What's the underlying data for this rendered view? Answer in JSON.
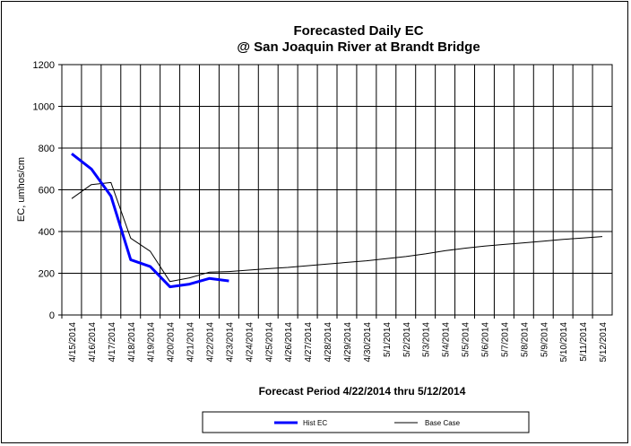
{
  "chart_data": {
    "type": "line",
    "title": "Forecasted Daily EC",
    "subtitle": "@ San Joaquin River at Brandt Bridge",
    "xlabel": "Forecast Period 4/22/2014 thru 5/12/2014",
    "ylabel": "EC, umhos/cm",
    "ylim": [
      0,
      1200
    ],
    "yticks": [
      0,
      200,
      400,
      600,
      800,
      1000,
      1200
    ],
    "grid": true,
    "legend_position": "bottom",
    "categories": [
      "4/15/2014",
      "4/16/2014",
      "4/17/2014",
      "4/18/2014",
      "4/19/2014",
      "4/20/2014",
      "4/21/2014",
      "4/22/2014",
      "4/23/2014",
      "4/24/2014",
      "4/25/2014",
      "4/26/2014",
      "4/27/2014",
      "4/28/2014",
      "4/29/2014",
      "4/30/2014",
      "5/1/2014",
      "5/2/2014",
      "5/3/2014",
      "5/4/2014",
      "5/5/2014",
      "5/6/2014",
      "5/7/2014",
      "5/8/2014",
      "5/9/2014",
      "5/10/2014",
      "5/11/2014",
      "5/12/2014"
    ],
    "series": [
      {
        "name": "Hist EC",
        "color": "#0000ff",
        "width": 3,
        "values": [
          773,
          700,
          570,
          265,
          232,
          135,
          148,
          175,
          163,
          null,
          null,
          null,
          null,
          null,
          null,
          null,
          null,
          null,
          null,
          null,
          null,
          null,
          null,
          null,
          null,
          null,
          null,
          null
        ]
      },
      {
        "name": "Base Case",
        "color": "#000000",
        "width": 1,
        "values": [
          558,
          625,
          635,
          368,
          305,
          160,
          178,
          205,
          208,
          215,
          222,
          228,
          236,
          244,
          252,
          260,
          270,
          280,
          293,
          308,
          320,
          330,
          338,
          346,
          354,
          362,
          369,
          376
        ]
      }
    ]
  }
}
